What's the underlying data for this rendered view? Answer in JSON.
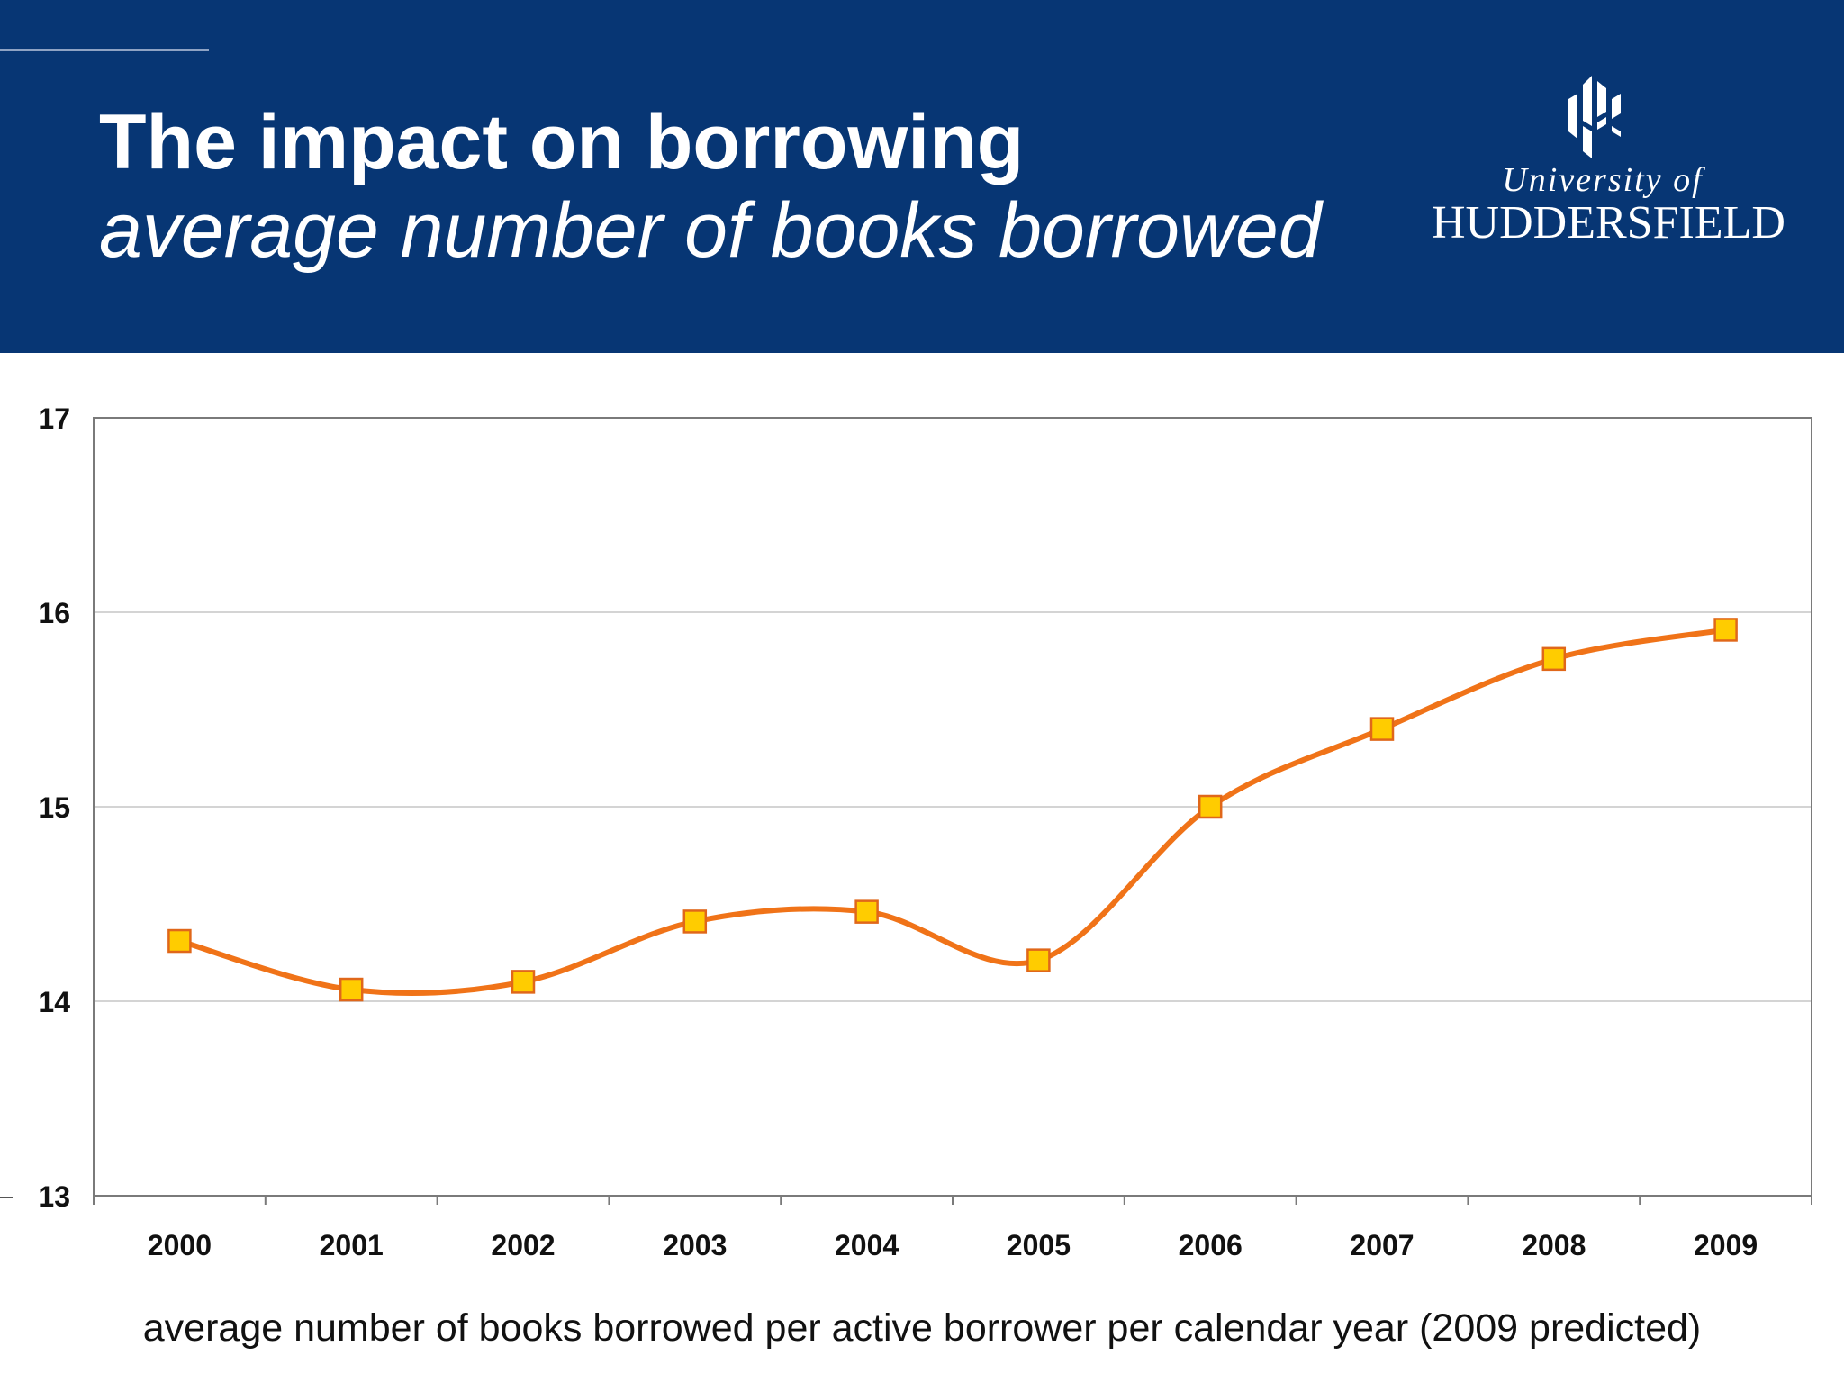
{
  "header": {
    "title": "The impact on borrowing",
    "subtitle": "average number of books borrowed",
    "background_color": "#073674"
  },
  "logo": {
    "line1": "University of",
    "line2": "HUDDERSFIELD",
    "icon": "huddersfield-crest-icon"
  },
  "caption": "average number of books borrowed per active borrower per calendar year (2009 predicted)",
  "chart_data": {
    "type": "line",
    "categories": [
      "2000",
      "2001",
      "2002",
      "2003",
      "2004",
      "2005",
      "2006",
      "2007",
      "2008",
      "2009"
    ],
    "series": [
      {
        "values": [
          14.31,
          14.06,
          14.1,
          14.41,
          14.46,
          14.21,
          15.0,
          15.4,
          15.76,
          15.91
        ],
        "color": "#f07318",
        "marker": "square",
        "marker_color": "#ffcc00"
      }
    ],
    "ylim": [
      13,
      17
    ],
    "yticks": [
      "13",
      "14",
      "15",
      "16",
      "17"
    ],
    "grid": true,
    "smooth": true
  }
}
